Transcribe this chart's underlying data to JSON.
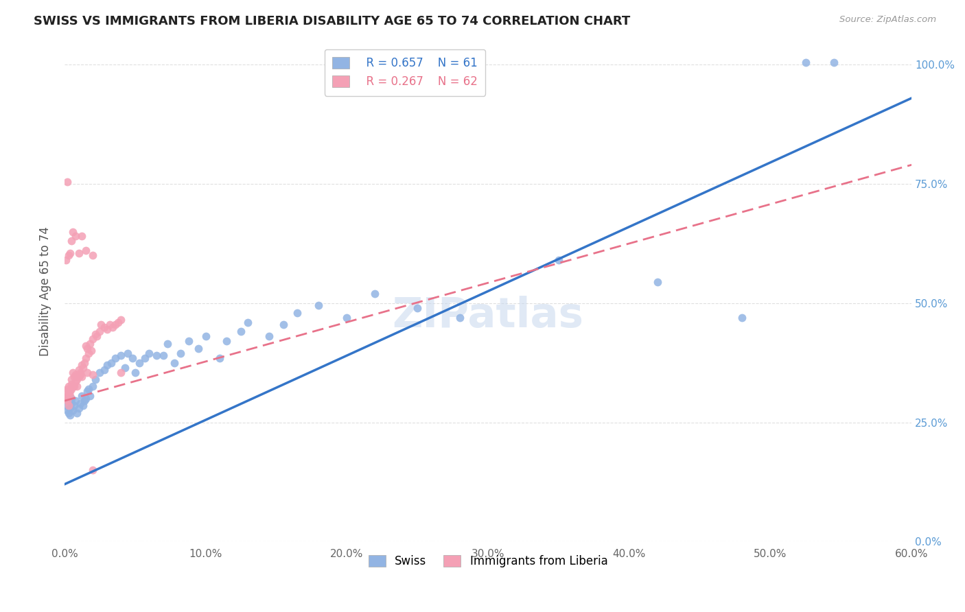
{
  "title": "SWISS VS IMMIGRANTS FROM LIBERIA DISABILITY AGE 65 TO 74 CORRELATION CHART",
  "source": "Source: ZipAtlas.com",
  "xmin": 0.0,
  "xmax": 0.6,
  "ymin": 0.0,
  "ymax": 1.05,
  "legend_swiss_r": "R = 0.657",
  "legend_swiss_n": "N = 61",
  "legend_lib_r": "R = 0.267",
  "legend_lib_n": "N = 62",
  "ylabel": "Disability Age 65 to 74",
  "swiss_color": "#92b4e3",
  "liberia_color": "#f4a0b5",
  "swiss_line_color": "#3475c8",
  "liberia_line_color": "#e8728a",
  "swiss_x": [
    0.001,
    0.002,
    0.003,
    0.003,
    0.004,
    0.004,
    0.005,
    0.005,
    0.006,
    0.007,
    0.008,
    0.009,
    0.01,
    0.011,
    0.012,
    0.013,
    0.014,
    0.015,
    0.016,
    0.017,
    0.018,
    0.02,
    0.022,
    0.025,
    0.028,
    0.03,
    0.033,
    0.036,
    0.04,
    0.043,
    0.045,
    0.048,
    0.05,
    0.053,
    0.057,
    0.06,
    0.065,
    0.07,
    0.073,
    0.078,
    0.082,
    0.088,
    0.095,
    0.1,
    0.11,
    0.115,
    0.125,
    0.13,
    0.145,
    0.155,
    0.165,
    0.18,
    0.2,
    0.22,
    0.25,
    0.28,
    0.35,
    0.42,
    0.48,
    0.525,
    0.545
  ],
  "swiss_y": [
    0.285,
    0.275,
    0.27,
    0.295,
    0.28,
    0.265,
    0.29,
    0.3,
    0.275,
    0.285,
    0.295,
    0.27,
    0.28,
    0.29,
    0.305,
    0.285,
    0.295,
    0.3,
    0.315,
    0.32,
    0.305,
    0.325,
    0.34,
    0.355,
    0.36,
    0.37,
    0.375,
    0.385,
    0.39,
    0.365,
    0.395,
    0.385,
    0.355,
    0.375,
    0.385,
    0.395,
    0.39,
    0.39,
    0.415,
    0.375,
    0.395,
    0.42,
    0.405,
    0.43,
    0.385,
    0.42,
    0.44,
    0.46,
    0.43,
    0.455,
    0.48,
    0.495,
    0.47,
    0.52,
    0.49,
    0.47,
    0.59,
    0.545,
    0.47,
    1.005,
    1.005
  ],
  "lib_x": [
    0.001,
    0.001,
    0.002,
    0.002,
    0.002,
    0.003,
    0.003,
    0.003,
    0.004,
    0.004,
    0.005,
    0.005,
    0.005,
    0.006,
    0.006,
    0.007,
    0.007,
    0.008,
    0.008,
    0.009,
    0.009,
    0.01,
    0.01,
    0.011,
    0.011,
    0.012,
    0.012,
    0.013,
    0.014,
    0.015,
    0.015,
    0.016,
    0.016,
    0.017,
    0.018,
    0.019,
    0.02,
    0.02,
    0.022,
    0.023,
    0.025,
    0.026,
    0.028,
    0.03,
    0.032,
    0.034,
    0.036,
    0.038,
    0.04,
    0.04,
    0.001,
    0.003,
    0.004,
    0.005,
    0.006,
    0.008,
    0.01,
    0.012,
    0.015,
    0.02,
    0.002,
    0.02
  ],
  "lib_y": [
    0.3,
    0.315,
    0.305,
    0.32,
    0.295,
    0.31,
    0.325,
    0.285,
    0.315,
    0.305,
    0.33,
    0.34,
    0.32,
    0.355,
    0.325,
    0.325,
    0.345,
    0.335,
    0.35,
    0.325,
    0.34,
    0.36,
    0.345,
    0.35,
    0.355,
    0.37,
    0.345,
    0.365,
    0.375,
    0.385,
    0.41,
    0.405,
    0.355,
    0.395,
    0.415,
    0.4,
    0.425,
    0.35,
    0.435,
    0.43,
    0.44,
    0.455,
    0.45,
    0.445,
    0.455,
    0.45,
    0.455,
    0.46,
    0.465,
    0.355,
    0.59,
    0.6,
    0.605,
    0.63,
    0.65,
    0.64,
    0.605,
    0.64,
    0.61,
    0.6,
    0.755,
    0.15
  ],
  "swiss_line_x": [
    0.0,
    0.6
  ],
  "swiss_line_y": [
    0.12,
    0.93
  ],
  "lib_line_x": [
    0.0,
    0.6
  ],
  "lib_line_y": [
    0.295,
    0.79
  ]
}
